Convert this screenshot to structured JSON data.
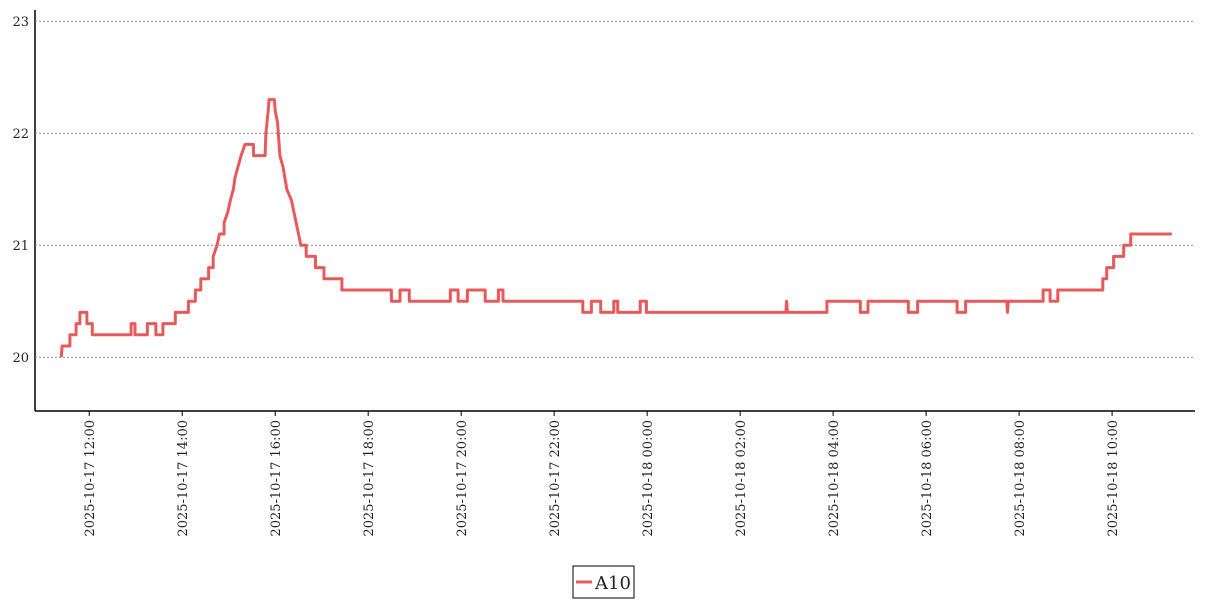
{
  "chart_data": {
    "type": "line",
    "x": [
      "2025-10-17 11:24",
      "2025-10-17 11:25",
      "2025-10-17 11:35",
      "2025-10-17 11:35",
      "2025-10-17 11:43",
      "2025-10-17 11:43",
      "2025-10-17 11:48",
      "2025-10-17 11:48",
      "2025-10-17 11:57",
      "2025-10-17 11:57",
      "2025-10-17 12:04",
      "2025-10-17 12:04",
      "2025-10-17 12:54",
      "2025-10-17 12:54",
      "2025-10-17 12:59",
      "2025-10-17 12:59",
      "2025-10-17 13:15",
      "2025-10-17 13:15",
      "2025-10-17 13:26",
      "2025-10-17 13:26",
      "2025-10-17 13:35",
      "2025-10-17 13:35",
      "2025-10-17 13:51",
      "2025-10-17 13:51",
      "2025-10-17 14:08",
      "2025-10-17 14:08",
      "2025-10-17 14:17",
      "2025-10-17 14:17",
      "2025-10-17 14:24",
      "2025-10-17 14:24",
      "2025-10-17 14:34",
      "2025-10-17 14:34",
      "2025-10-17 14:40",
      "2025-10-17 14:40",
      "2025-10-17 14:45",
      "2025-10-17 14:48",
      "2025-10-17 14:54",
      "2025-10-17 14:54",
      "2025-10-17 14:59",
      "2025-10-17 15:02",
      "2025-10-17 15:06",
      "2025-10-17 15:08",
      "2025-10-17 15:12",
      "2025-10-17 15:16",
      "2025-10-17 15:21",
      "2025-10-17 15:32",
      "2025-10-17 15:32",
      "2025-10-17 15:47",
      "2025-10-17 15:48",
      "2025-10-17 15:51",
      "2025-10-17 15:52",
      "2025-10-17 15:59",
      "2025-10-17 16:00",
      "2025-10-17 16:03",
      "2025-10-17 16:06",
      "2025-10-17 16:10",
      "2025-10-17 16:15",
      "2025-10-17 16:21",
      "2025-10-17 16:24",
      "2025-10-17 16:30",
      "2025-10-17 16:33",
      "2025-10-17 16:40",
      "2025-10-17 16:40",
      "2025-10-17 16:52",
      "2025-10-17 16:52",
      "2025-10-17 17:03",
      "2025-10-17 17:03",
      "2025-10-17 17:26",
      "2025-10-17 17:26",
      "2025-10-17 18:30",
      "2025-10-17 18:30",
      "2025-10-17 18:41",
      "2025-10-17 18:41",
      "2025-10-17 18:53",
      "2025-10-17 18:53",
      "2025-10-17 19:46",
      "2025-10-17 19:46",
      "2025-10-17 19:56",
      "2025-10-17 19:56",
      "2025-10-17 20:08",
      "2025-10-17 20:08",
      "2025-10-17 20:31",
      "2025-10-17 20:31",
      "2025-10-17 20:48",
      "2025-10-17 20:48",
      "2025-10-17 20:54",
      "2025-10-17 20:54",
      "2025-10-17 22:37",
      "2025-10-17 22:37",
      "2025-10-17 22:48",
      "2025-10-17 22:48",
      "2025-10-17 23:00",
      "2025-10-17 23:00",
      "2025-10-17 23:17",
      "2025-10-17 23:17",
      "2025-10-17 23:22",
      "2025-10-17 23:22",
      "2025-10-17 23:51",
      "2025-10-17 23:51",
      "2025-10-17 23:59",
      "2025-10-17 23:59",
      "2025-10-18 02:59",
      "2025-10-18 03:00",
      "2025-10-18 03:01",
      "2025-10-18 03:52",
      "2025-10-18 03:52",
      "2025-10-18 04:35",
      "2025-10-18 04:35",
      "2025-10-18 04:45",
      "2025-10-18 04:45",
      "2025-10-18 05:37",
      "2025-10-18 05:37",
      "2025-10-18 05:49",
      "2025-10-18 05:49",
      "2025-10-18 06:40",
      "2025-10-18 06:40",
      "2025-10-18 06:51",
      "2025-10-18 06:51",
      "2025-10-18 07:44",
      "2025-10-18 07:45",
      "2025-10-18 07:46",
      "2025-10-18 08:31",
      "2025-10-18 08:31",
      "2025-10-18 08:40",
      "2025-10-18 08:40",
      "2025-10-18 08:50",
      "2025-10-18 08:50",
      "2025-10-18 09:48",
      "2025-10-18 09:48",
      "2025-10-18 09:53",
      "2025-10-18 09:53",
      "2025-10-18 10:02",
      "2025-10-18 10:02",
      "2025-10-18 10:15",
      "2025-10-18 10:15",
      "2025-10-18 10:24",
      "2025-10-18 10:24",
      "2025-10-18 11:17"
    ],
    "series": [
      {
        "name": "A10",
        "color": "#e8595a",
        "values": [
          20.0,
          20.1,
          20.1,
          20.2,
          20.2,
          20.3,
          20.3,
          20.4,
          20.4,
          20.3,
          20.3,
          20.2,
          20.2,
          20.3,
          20.3,
          20.2,
          20.2,
          20.3,
          20.3,
          20.2,
          20.2,
          20.3,
          20.3,
          20.4,
          20.4,
          20.5,
          20.5,
          20.6,
          20.6,
          20.7,
          20.7,
          20.8,
          20.8,
          20.9,
          21.0,
          21.1,
          21.1,
          21.2,
          21.3,
          21.4,
          21.5,
          21.6,
          21.7,
          21.8,
          21.9,
          21.9,
          21.8,
          21.8,
          22.0,
          22.2,
          22.3,
          22.3,
          22.2,
          22.1,
          21.8,
          21.7,
          21.5,
          21.4,
          21.3,
          21.1,
          21.0,
          21.0,
          20.9,
          20.9,
          20.8,
          20.8,
          20.7,
          20.7,
          20.6,
          20.6,
          20.5,
          20.5,
          20.6,
          20.6,
          20.5,
          20.5,
          20.6,
          20.6,
          20.5,
          20.5,
          20.6,
          20.6,
          20.5,
          20.5,
          20.6,
          20.6,
          20.5,
          20.5,
          20.4,
          20.4,
          20.5,
          20.5,
          20.4,
          20.4,
          20.5,
          20.5,
          20.4,
          20.4,
          20.5,
          20.5,
          20.4,
          20.4,
          20.5,
          20.4,
          20.4,
          20.5,
          20.5,
          20.4,
          20.4,
          20.5,
          20.5,
          20.4,
          20.4,
          20.5,
          20.5,
          20.4,
          20.4,
          20.5,
          20.5,
          20.4,
          20.5,
          20.5,
          20.6,
          20.6,
          20.5,
          20.5,
          20.6,
          20.6,
          20.7,
          20.7,
          20.8,
          20.8,
          20.9,
          20.9,
          21.0,
          21.0,
          21.1,
          21.1
        ]
      }
    ],
    "xlim": [
      "2025-10-17 10:50",
      "2025-10-18 11:47"
    ],
    "xticks": [
      "2025-10-17 12:00",
      "2025-10-17 14:00",
      "2025-10-17 16:00",
      "2025-10-17 18:00",
      "2025-10-17 20:00",
      "2025-10-17 22:00",
      "2025-10-18 00:00",
      "2025-10-18 02:00",
      "2025-10-18 04:00",
      "2025-10-18 06:00",
      "2025-10-18 08:00",
      "2025-10-18 10:00"
    ],
    "ylim": [
      19.52,
      23.1
    ],
    "yticks": [
      20,
      21,
      22,
      23
    ],
    "grid": true
  }
}
